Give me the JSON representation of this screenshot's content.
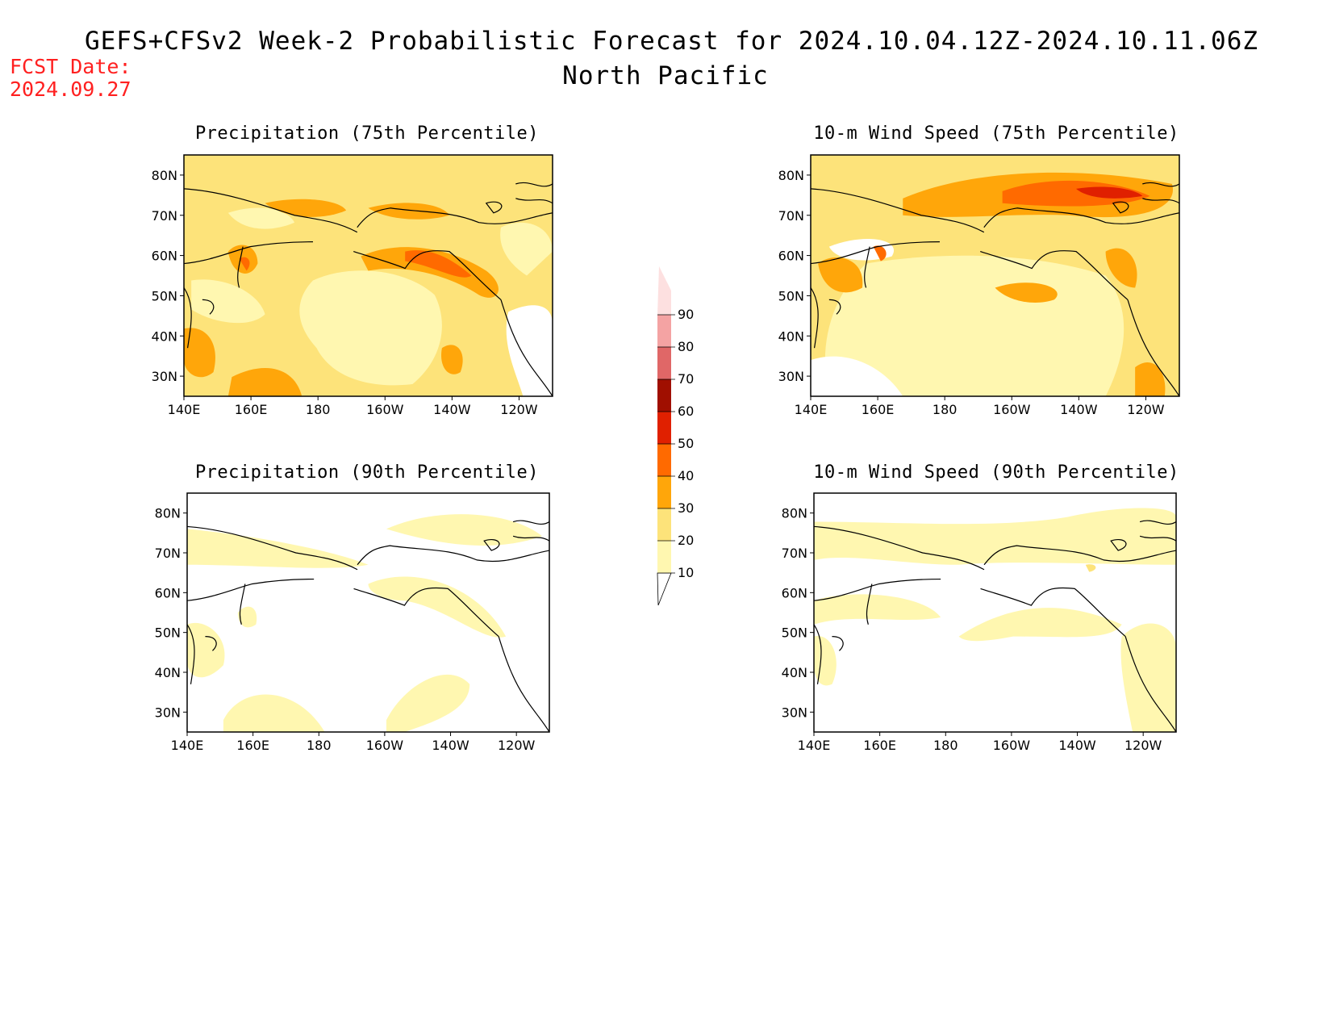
{
  "title": "GEFS+CFSv2 Week-2 Probabilistic Forecast for 2024.10.04.12Z-2024.10.11.06Z",
  "subtitle": "North Pacific",
  "fcst_label": "FCST Date:",
  "fcst_date": "2024.09.27",
  "lon_labels": [
    "140E",
    "160E",
    "180",
    "160W",
    "140W",
    "120W"
  ],
  "lat_labels": [
    "80N",
    "70N",
    "60N",
    "50N",
    "40N",
    "30N"
  ],
  "panels": [
    {
      "title": "Precipitation (75th Percentile)",
      "variant": "precip75"
    },
    {
      "title": "10-m Wind Speed (75th Percentile)",
      "variant": "wind75"
    },
    {
      "title": "Precipitation (90th Percentile)",
      "variant": "precip90"
    },
    {
      "title": "10-m Wind Speed (90th Percentile)",
      "variant": "wind90"
    }
  ],
  "colorbar": {
    "levels": [
      "10",
      "20",
      "30",
      "40",
      "50",
      "60",
      "70",
      "80",
      "90"
    ],
    "colors": [
      "#fff7b0",
      "#fde37a",
      "#ffa60a",
      "#ff6a00",
      "#e02000",
      "#a00f00",
      "#e06767",
      "#f4a3a3",
      "#fde0e0"
    ]
  }
}
